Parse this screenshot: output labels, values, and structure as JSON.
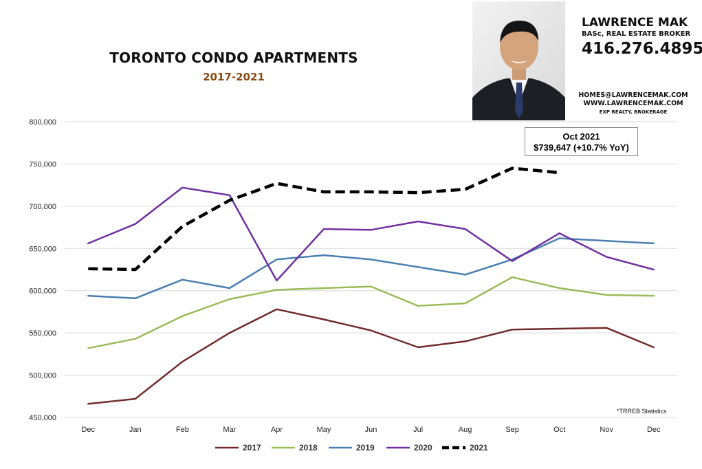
{
  "header": {
    "title": "TORONTO CONDO APARTMENTS",
    "subtitle": "2017-2021"
  },
  "agent": {
    "name": "LAWRENCE MAK",
    "title": "BASc, REAL ESTATE BROKER",
    "phone": "416.276.4895",
    "email": "HOMES@LAWRENCEMAK.COM",
    "website": "WWW.LAWRENCEMAK.COM",
    "brokerage": "EXP REALTY, BROKERAGE"
  },
  "callout": {
    "period": "Oct 2021",
    "value": "$739,647  (+10.7%  YoY)"
  },
  "source_note": "*TRREB Statistics",
  "colors": {
    "2017": "#722b2b",
    "2018": "#9bbb59",
    "2019": "#4a7eb0",
    "2020": "#7030a0",
    "2021": "#000000",
    "title_year": "#8b4a13"
  },
  "chart_data": {
    "type": "line",
    "title": "TORONTO CONDO APARTMENTS",
    "subtitle": "2017-2021",
    "xlabel": "",
    "ylabel": "",
    "categories": [
      "Dec",
      "Jan",
      "Feb",
      "Mar",
      "Apr",
      "May",
      "Jun",
      "Jul",
      "Aug",
      "Sep",
      "Oct",
      "Nov",
      "Dec"
    ],
    "ylim": [
      450000,
      800000
    ],
    "yticks": [
      450000,
      500000,
      550000,
      600000,
      650000,
      700000,
      750000,
      800000
    ],
    "ytick_labels": [
      "450,000",
      "500,000",
      "550,000",
      "600,000",
      "650,000",
      "700,000",
      "750,000",
      "800,000"
    ],
    "grid": "horizontal",
    "legend": "bottom",
    "series": [
      {
        "name": "2017",
        "style": "solid",
        "values": [
          466000,
          472000,
          516000,
          550000,
          578000,
          566000,
          553000,
          533000,
          540000,
          554000,
          555000,
          556000,
          533000
        ]
      },
      {
        "name": "2018",
        "style": "solid",
        "values": [
          532000,
          543000,
          570000,
          590000,
          601000,
          603000,
          605000,
          582000,
          585000,
          616000,
          603000,
          595000,
          594000
        ]
      },
      {
        "name": "2019",
        "style": "solid",
        "values": [
          594000,
          591000,
          613000,
          603000,
          637000,
          642000,
          637000,
          628000,
          619000,
          637000,
          662000,
          659000,
          656000
        ]
      },
      {
        "name": "2020",
        "style": "solid",
        "values": [
          656000,
          679000,
          722000,
          713000,
          612000,
          673000,
          672000,
          682000,
          673000,
          635000,
          668000,
          640000,
          625000
        ]
      },
      {
        "name": "2021",
        "style": "dashed",
        "values": [
          626000,
          625000,
          676000,
          707000,
          727000,
          717000,
          717000,
          716000,
          720000,
          745000,
          739647,
          null,
          null
        ]
      }
    ]
  }
}
